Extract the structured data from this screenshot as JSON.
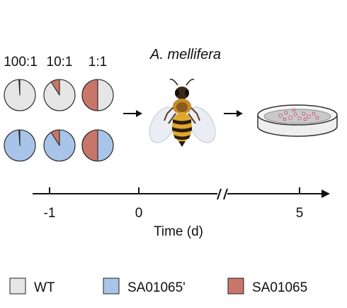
{
  "title": "A. mellifera",
  "ratios": [
    {
      "label": "100:1",
      "strain_fraction": 0.0099
    },
    {
      "label": "10:1",
      "strain_fraction": 0.0909
    },
    {
      "label": "1:1",
      "strain_fraction": 0.5
    }
  ],
  "rows": [
    {
      "base_key": "wt",
      "minor_key": "sa01065"
    },
    {
      "base_key": "sa01065_prime",
      "minor_key": "sa01065"
    }
  ],
  "timeline": {
    "ticks": [
      "-1",
      "0",
      "5"
    ],
    "axis_label": "Time (d)"
  },
  "legend": [
    {
      "key": "wt",
      "label": "WT",
      "color": "#e6e6e6"
    },
    {
      "key": "sa01065_prime",
      "label": "SA01065'",
      "color": "#a8c4e8"
    },
    {
      "key": "sa01065",
      "label": "SA01065",
      "color": "#c8766a"
    }
  ],
  "icons": {
    "bee": "honeybee-icon",
    "dish": "petri-dish-icon",
    "arrow": "right-arrow-icon"
  }
}
